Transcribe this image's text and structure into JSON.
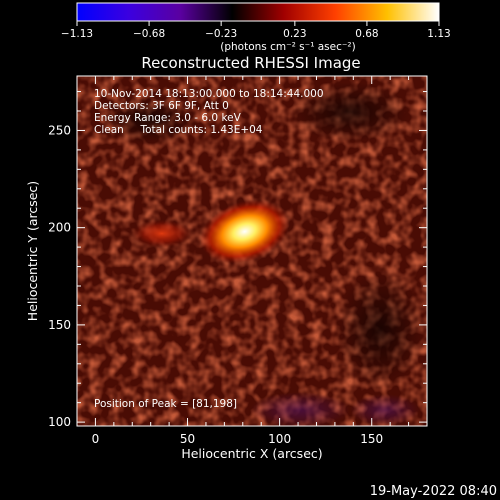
{
  "chart_data": {
    "type": "heatmap",
    "title": "Reconstructed RHESSI Image",
    "xlabel": "Heliocentric X (arcsec)",
    "ylabel": "Heliocentric Y (arcsec)",
    "xlim": [
      -10,
      180
    ],
    "ylim": [
      98,
      278
    ],
    "x_ticks": [
      0,
      50,
      100,
      150
    ],
    "y_ticks": [
      100,
      150,
      200,
      250
    ],
    "colorbar": {
      "range": [
        -1.13,
        1.13
      ],
      "ticks": [
        "-1.13",
        "-0.68",
        "-0.23",
        "0.23",
        "0.68",
        "1.13"
      ],
      "units_label": "(photons cm⁻² s⁻¹ asec⁻²)",
      "stops": [
        "#0000ff",
        "#3b00e0",
        "#5a00a0",
        "#000000",
        "#a00000",
        "#ff4000",
        "#ffc000",
        "#ffffff"
      ]
    },
    "info_lines": [
      "10-Nov-2014 18:13:00.000 to 18:14:44.000",
      "Detectors: 3F 6F 9F, Att 0",
      "Energy Range: 3.0 - 6.0 keV",
      "Clean     Total counts: 1.43E+04"
    ],
    "peak_label": "Position of Peak = [81,198]",
    "peak": [
      81,
      198
    ],
    "sources": [
      {
        "x": 81,
        "y": 198,
        "value": 1.13
      },
      {
        "x": 36,
        "y": 197,
        "value": 0.42
      }
    ],
    "timestamp": "19-May-2022 08:40"
  }
}
